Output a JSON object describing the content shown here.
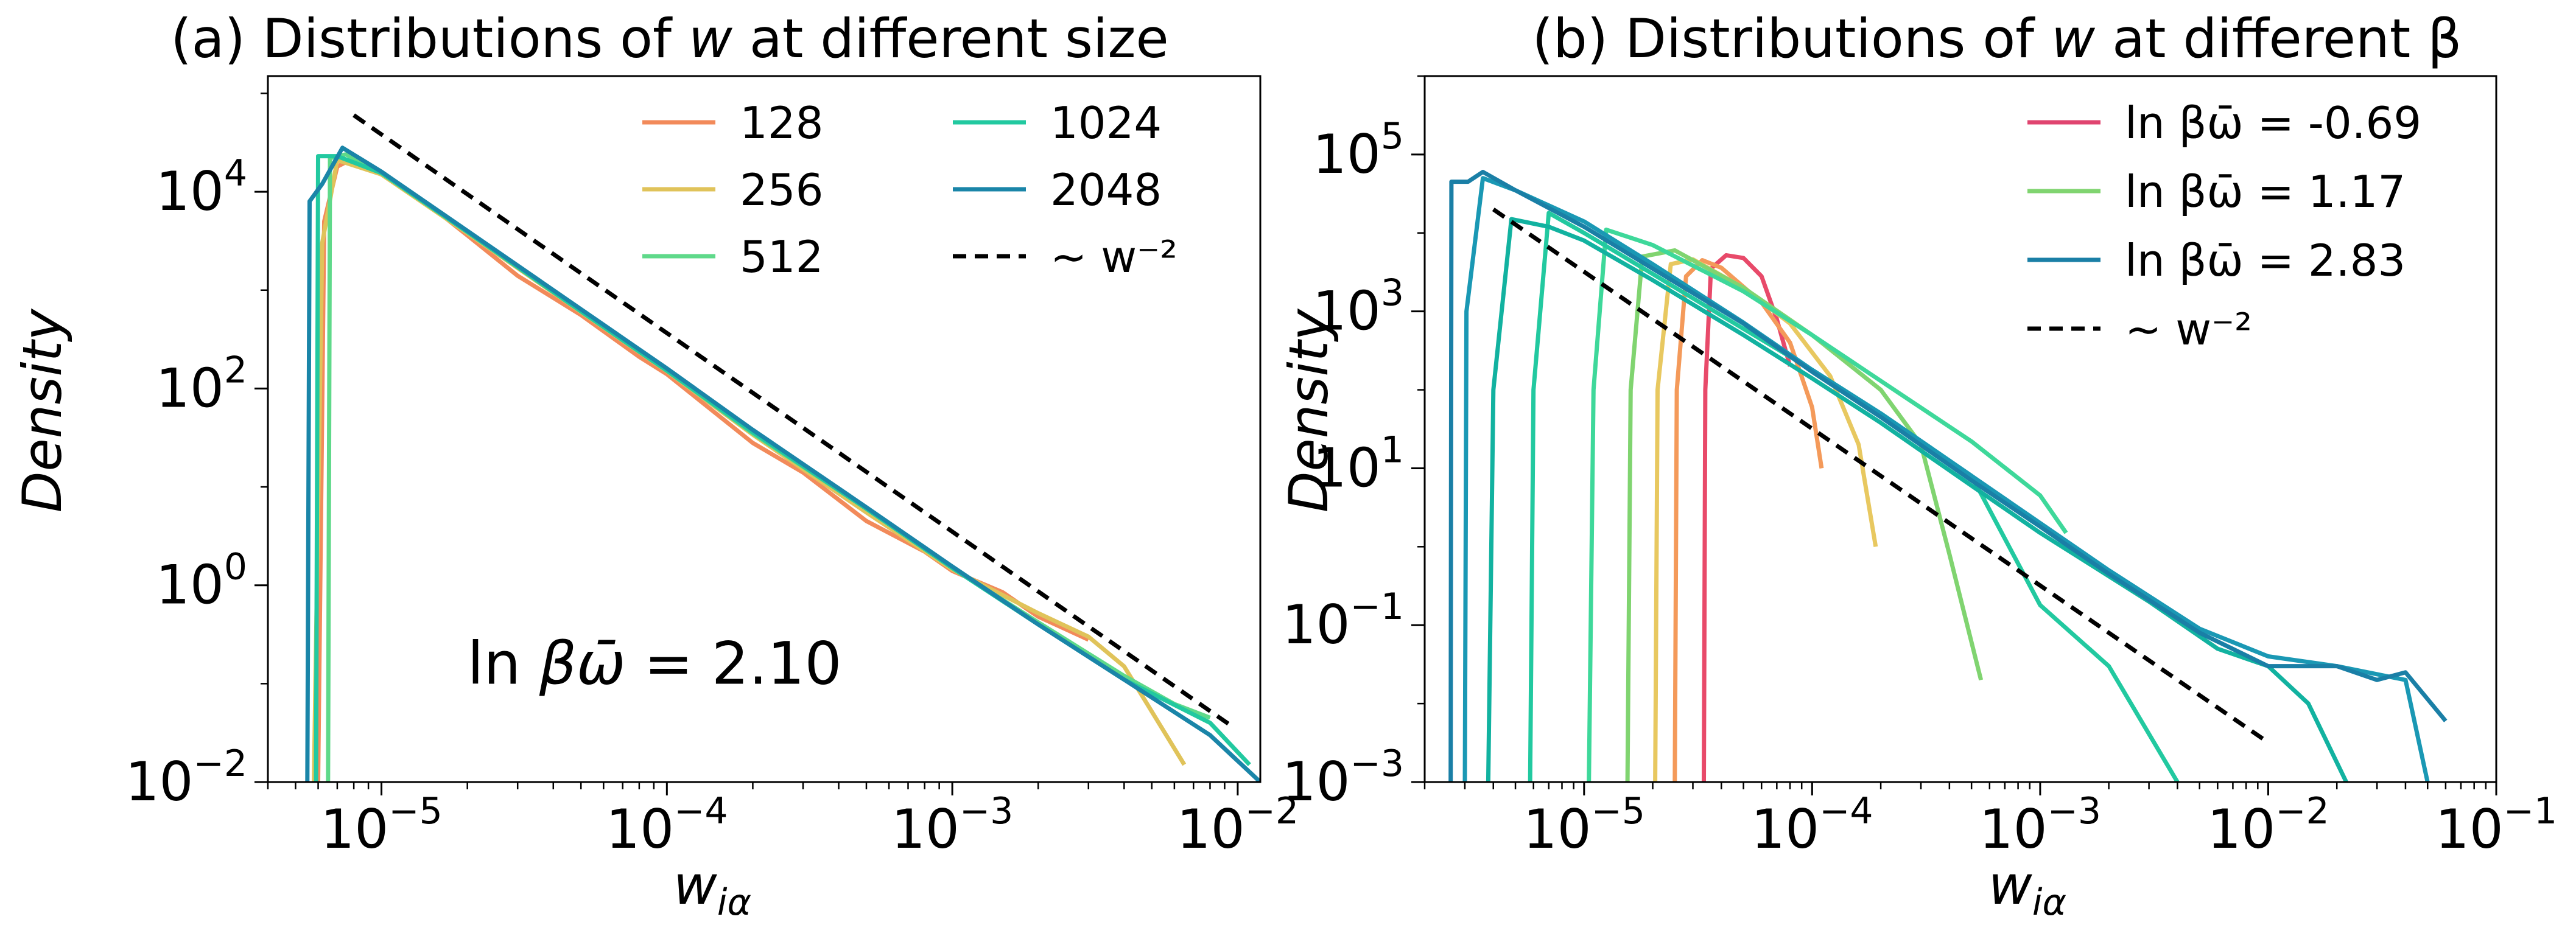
{
  "chart_data": [
    {
      "type": "line",
      "panel_label": "(a)",
      "title_prefix": "Distributions of",
      "title_var": "w",
      "title_suffix": "at different size",
      "xlabel_base": "w",
      "xlabel_sub": "iα",
      "ylabel": "Density",
      "xscale": "log",
      "yscale": "log",
      "xlim": [
        4e-06,
        0.012
      ],
      "ylim": [
        0.01,
        150000
      ],
      "xticks": [
        {
          "value": 1e-05,
          "base": "10",
          "exp": "−5"
        },
        {
          "value": 0.0001,
          "base": "10",
          "exp": "−4"
        },
        {
          "value": 0.001,
          "base": "10",
          "exp": "−3"
        },
        {
          "value": 0.01,
          "base": "10",
          "exp": "−2"
        }
      ],
      "yticks": [
        {
          "value": 0.01,
          "base": "10",
          "exp": "−2"
        },
        {
          "value": 1,
          "base": "10",
          "exp": "0"
        },
        {
          "value": 100,
          "base": "10",
          "exp": "2"
        },
        {
          "value": 10000,
          "base": "10",
          "exp": "4"
        }
      ],
      "annotation": {
        "prefix": "ln",
        "var": "βω̄",
        "value": "= 2.10",
        "x": 2e-05,
        "y": 0.1
      },
      "legend": {
        "placement": "upper-right",
        "columns": 2
      },
      "series": [
        {
          "name": "128",
          "color": "#f28a5a",
          "dashed": false,
          "x": [
            6e-06,
            6.3e-06,
            7e-06,
            8e-06,
            1e-05,
            1.5e-05,
            2e-05,
            3e-05,
            5e-05,
            8e-05,
            0.0001,
            0.0002,
            0.0003,
            0.0005,
            0.0008,
            0.001,
            0.0015,
            0.002,
            0.003
          ],
          "y": [
            0.01,
            5000,
            18000,
            22000,
            15000,
            7000,
            3600,
            1400,
            560,
            210,
            140,
            28,
            14,
            4.5,
            2.2,
            1.4,
            0.85,
            0.48,
            0.28
          ]
        },
        {
          "name": "256",
          "color": "#e0c35a",
          "dashed": false,
          "x": [
            5.8e-06,
            6.2e-06,
            7e-06,
            1e-05,
            2e-05,
            5e-05,
            0.0001,
            0.0002,
            0.0005,
            0.001,
            0.002,
            0.003,
            0.004,
            0.0065
          ],
          "y": [
            0.01,
            3000,
            21000,
            15000,
            3800,
            600,
            150,
            34,
            5.5,
            1.45,
            0.52,
            0.3,
            0.15,
            0.015
          ]
        },
        {
          "name": "512",
          "color": "#5fd98a",
          "dashed": false,
          "x": [
            6.5e-06,
            6.6e-06,
            7.5e-06,
            1e-05,
            2e-05,
            5e-05,
            0.0001,
            0.0002,
            0.0005,
            0.001,
            0.002,
            0.004,
            0.006,
            0.008
          ],
          "y": [
            0.01,
            22000,
            24000,
            15500,
            3900,
            610,
            152,
            35,
            6,
            1.5,
            0.42,
            0.12,
            0.062,
            0.045
          ]
        },
        {
          "name": "1024",
          "color": "#22c9a0",
          "dashed": false,
          "x": [
            5.9e-06,
            6e-06,
            7e-06,
            1e-05,
            2e-05,
            5e-05,
            0.0001,
            0.0002,
            0.0005,
            0.001,
            0.002,
            0.004,
            0.008,
            0.011
          ],
          "y": [
            0.01,
            23000,
            23000,
            15500,
            3900,
            610,
            152,
            36,
            6,
            1.5,
            0.4,
            0.11,
            0.04,
            0.015
          ]
        },
        {
          "name": "2048",
          "color": "#1a85a8",
          "dashed": false,
          "x": [
            5.5e-06,
            5.6e-06,
            6.2e-06,
            7.3e-06,
            1e-05,
            2e-05,
            5e-05,
            0.0001,
            0.0002,
            0.0005,
            0.001,
            0.002,
            0.004,
            0.008,
            0.012
          ],
          "y": [
            0.01,
            8000,
            12000,
            28000,
            16000,
            4000,
            640,
            160,
            38,
            6.2,
            1.55,
            0.4,
            0.11,
            0.03,
            0.01
          ]
        },
        {
          "name": "∼ w⁻²",
          "color": "#000000",
          "dashed": true,
          "x": [
            8e-06,
            0.0098
          ],
          "y": [
            60000,
            0.035
          ]
        }
      ]
    },
    {
      "type": "line",
      "panel_label": "(b)",
      "title_prefix": "Distributions of",
      "title_var": "w",
      "title_suffix": "at different β",
      "xlabel_base": "w",
      "xlabel_sub": "iα",
      "ylabel": "Density",
      "xscale": "log",
      "yscale": "log",
      "xlim": [
        2e-06,
        0.1
      ],
      "ylim": [
        0.001,
        1000000
      ],
      "xticks": [
        {
          "value": 1e-05,
          "base": "10",
          "exp": "−5"
        },
        {
          "value": 0.0001,
          "base": "10",
          "exp": "−4"
        },
        {
          "value": 0.001,
          "base": "10",
          "exp": "−3"
        },
        {
          "value": 0.01,
          "base": "10",
          "exp": "−2"
        },
        {
          "value": 0.1,
          "base": "10",
          "exp": "−1"
        }
      ],
      "yticks": [
        {
          "value": 0.001,
          "base": "10",
          "exp": "−3"
        },
        {
          "value": 0.1,
          "base": "10",
          "exp": "−1"
        },
        {
          "value": 10,
          "base": "10",
          "exp": "1"
        },
        {
          "value": 1000,
          "base": "10",
          "exp": "3"
        },
        {
          "value": 100000,
          "base": "10",
          "exp": "5"
        }
      ],
      "legend": {
        "placement": "upper-right",
        "columns": 1
      },
      "series": [
        {
          "name": "",
          "color": "#e84a6a",
          "dashed": false,
          "in_legend": false,
          "x": [
            3.35e-05,
            3.4e-05,
            3.6e-05,
            4.2e-05,
            5e-05,
            6e-05,
            7e-05,
            8e-05
          ],
          "y": [
            0.001,
            100,
            3500,
            5200,
            4800,
            2800,
            800,
            200
          ]
        },
        {
          "name": "",
          "color": "#f49a5a",
          "dashed": false,
          "in_legend": false,
          "x": [
            2.5e-05,
            2.55e-05,
            2.8e-05,
            3.3e-05,
            4e-05,
            6e-05,
            8e-05,
            0.0001,
            0.00011
          ],
          "y": [
            0.001,
            100,
            2800,
            4500,
            3600,
            1300,
            400,
            60,
            10
          ]
        },
        {
          "name": "",
          "color": "#e8c860",
          "dashed": false,
          "in_legend": false,
          "x": [
            2.05e-05,
            2.1e-05,
            2.4e-05,
            3e-05,
            5e-05,
            8e-05,
            0.00012,
            0.00016,
            0.00019
          ],
          "y": [
            0.001,
            100,
            4000,
            4600,
            2000,
            700,
            150,
            20,
            1.0
          ]
        },
        {
          "name": "ln βω̄ = 1.17",
          "color": "#80d470",
          "dashed": false,
          "in_legend": true,
          "x": [
            1.55e-05,
            1.6e-05,
            1.8e-05,
            2.5e-05,
            5e-05,
            0.0001,
            0.0002,
            0.0003,
            0.0004,
            0.00055
          ],
          "y": [
            0.001,
            100,
            5000,
            6000,
            2000,
            500,
            100,
            20,
            0.8,
            0.02
          ]
        },
        {
          "name": "",
          "color": "#3ed89a",
          "dashed": false,
          "in_legend": false,
          "x": [
            1.05e-05,
            1.1e-05,
            1.25e-05,
            2e-05,
            5e-05,
            0.0001,
            0.0002,
            0.0005,
            0.001,
            0.0013
          ],
          "y": [
            0.001,
            100,
            11000,
            7000,
            1800,
            500,
            130,
            22,
            4.5,
            1.5
          ]
        },
        {
          "name": "",
          "color": "#22c9a0",
          "dashed": false,
          "in_legend": false,
          "x": [
            5.8e-06,
            6e-06,
            7e-06,
            1e-05,
            2e-05,
            5e-05,
            0.0001,
            0.0002,
            0.0005,
            0.001,
            0.002,
            0.004
          ],
          "y": [
            0.001,
            100,
            18000,
            10000,
            3000,
            600,
            180,
            50,
            8,
            0.18,
            0.03,
            0.001
          ]
        },
        {
          "name": "",
          "color": "#12b2a0",
          "dashed": false,
          "in_legend": false,
          "x": [
            3.8e-06,
            4e-06,
            4.8e-06,
            7e-06,
            1e-05,
            2e-05,
            5e-05,
            0.0001,
            0.0002,
            0.0005,
            0.001,
            0.003,
            0.006,
            0.01,
            0.015,
            0.022
          ],
          "y": [
            0.001,
            100,
            15000,
            12000,
            8000,
            2500,
            500,
            140,
            38,
            6,
            1.5,
            0.2,
            0.05,
            0.03,
            0.01,
            0.001
          ]
        },
        {
          "name": "",
          "color": "#1a98b4",
          "dashed": false,
          "in_legend": false,
          "x": [
            3e-06,
            3.05e-06,
            3.6e-06,
            5e-06,
            1e-05,
            2e-05,
            5e-05,
            0.0001,
            0.0002,
            0.0005,
            0.001,
            0.002,
            0.005,
            0.01,
            0.02,
            0.04,
            0.05
          ],
          "y": [
            0.001,
            1000,
            50000,
            35000,
            14000,
            4000,
            720,
            180,
            50,
            8,
            2,
            0.5,
            0.09,
            0.04,
            0.03,
            0.02,
            0.001
          ]
        },
        {
          "name": "ln βω̄ = -0.69",
          "color": "#e04470",
          "dashed": false,
          "in_legend": true,
          "legend_only": true,
          "x": [],
          "y": []
        },
        {
          "name": "ln βω̄ = 2.83",
          "color": "#1a7fa6",
          "dashed": false,
          "in_legend": true,
          "x": [
            2.6e-06,
            2.62e-06,
            3.1e-06,
            3.6e-06,
            5e-06,
            1e-05,
            2e-05,
            5e-05,
            0.0001,
            0.0002,
            0.0005,
            0.001,
            0.002,
            0.005,
            0.01,
            0.02,
            0.03,
            0.04,
            0.06
          ],
          "y": [
            0.001,
            45000,
            45000,
            60000,
            35000,
            12000,
            3500,
            700,
            170,
            45,
            7,
            1.8,
            0.45,
            0.08,
            0.03,
            0.03,
            0.02,
            0.025,
            0.006
          ]
        },
        {
          "name": "∼ w⁻²",
          "color": "#000000",
          "dashed": true,
          "in_legend": true,
          "x": [
            4e-06,
            0.01
          ],
          "y": [
            20000,
            0.0032
          ]
        }
      ]
    }
  ]
}
